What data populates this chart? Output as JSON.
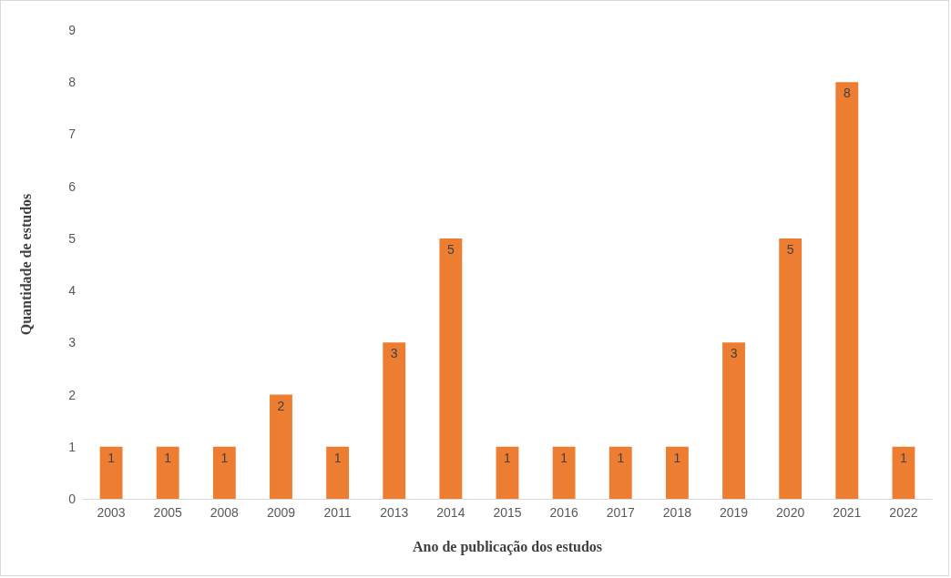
{
  "chart_data": {
    "type": "bar",
    "xlabel": "Ano de publicação dos estudos",
    "ylabel": "Quantidade de estudos",
    "categories": [
      "2003",
      "2005",
      "2008",
      "2009",
      "2011",
      "2013",
      "2014",
      "2015",
      "2016",
      "2017",
      "2018",
      "2019",
      "2020",
      "2021",
      "2022"
    ],
    "values": [
      1,
      1,
      1,
      2,
      1,
      3,
      5,
      1,
      1,
      1,
      1,
      3,
      5,
      8,
      1
    ],
    "color": "#ed7d31",
    "ylim": [
      0,
      9
    ],
    "yticks": [
      0,
      1,
      2,
      3,
      4,
      5,
      6,
      7,
      8,
      9
    ],
    "grid": false,
    "data_labels": true
  }
}
